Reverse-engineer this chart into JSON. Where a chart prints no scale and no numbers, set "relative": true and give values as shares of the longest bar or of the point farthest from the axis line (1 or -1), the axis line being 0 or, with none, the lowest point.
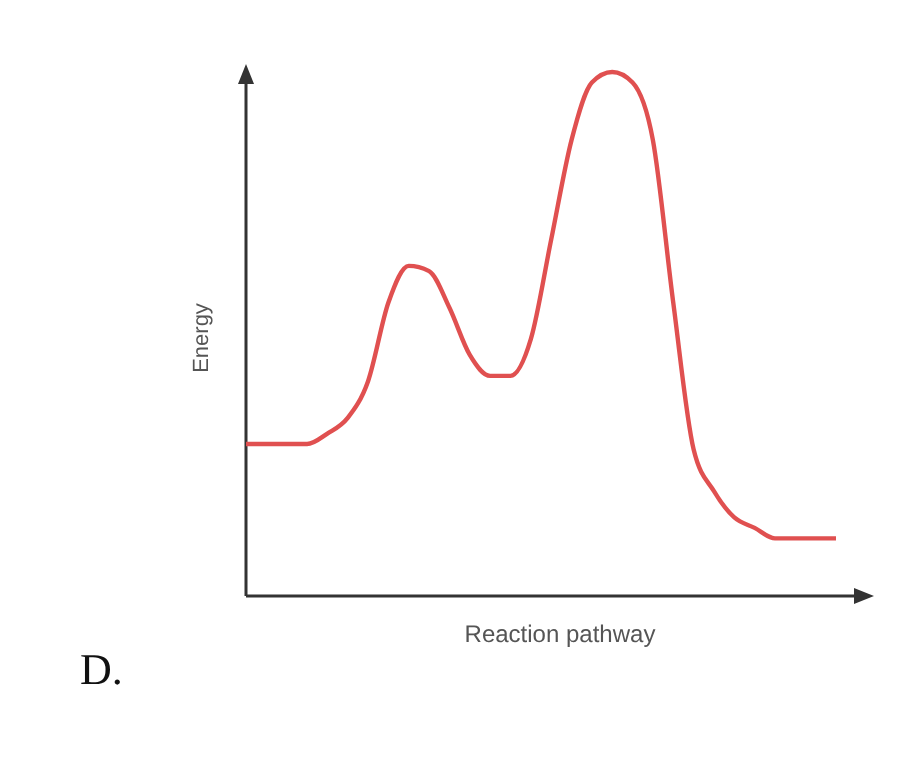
{
  "chart_data": {
    "type": "line",
    "relative": true,
    "xlabel": "Reaction pathway",
    "ylabel": "Energy",
    "annotations": [
      "D."
    ],
    "categories": [
      null,
      null,
      null,
      null,
      null,
      null,
      null,
      null,
      null,
      null,
      null,
      null,
      null,
      null,
      null,
      null,
      null,
      null,
      null,
      null,
      null,
      null,
      null,
      null,
      null,
      null,
      null,
      null,
      null,
      null
    ],
    "series": [
      {
        "color": "#e05050",
        "values": [
          0.29,
          0.29,
          0.29,
          0.29,
          0.31,
          0.34,
          0.41,
          0.56,
          0.63,
          0.62,
          0.55,
          0.46,
          0.42,
          0.42,
          0.49,
          0.68,
          0.87,
          0.98,
          1,
          0.98,
          0.87,
          0.56,
          0.28,
          0.2,
          0.15,
          0.13,
          0.11,
          0.11,
          0.11,
          0.11
        ]
      }
    ],
    "marker": "none",
    "line_style": "solid"
  }
}
